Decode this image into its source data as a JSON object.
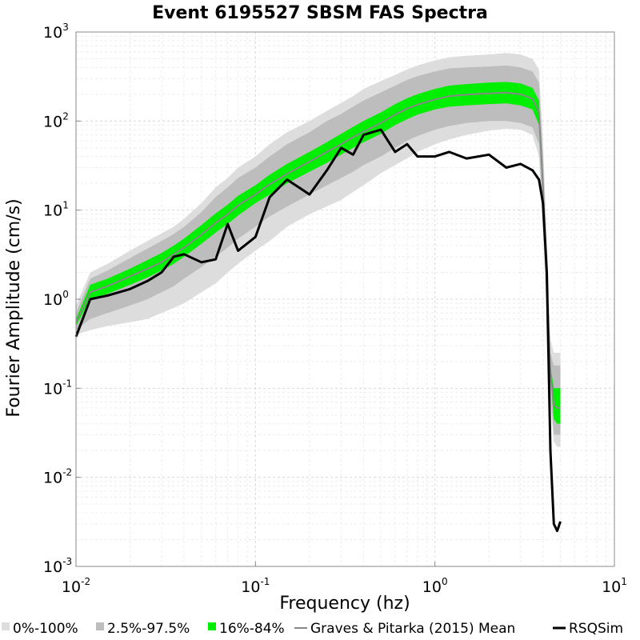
{
  "chart_data": {
    "type": "line",
    "title": "Event 6195527 SBSM FAS Spectra",
    "xlabel": "Frequency (hz)",
    "ylabel": "Fourier Amplitude (cm/s)",
    "x_scale": "log",
    "y_scale": "log",
    "xlim": [
      0.01,
      10
    ],
    "ylim": [
      0.001,
      1000
    ],
    "grid": true,
    "legend_position": "bottom",
    "x_ticks": [
      {
        "base": "10",
        "exp": "-2",
        "value": 0.01
      },
      {
        "base": "10",
        "exp": "-1",
        "value": 0.1
      },
      {
        "base": "10",
        "exp": "0",
        "value": 1
      },
      {
        "base": "10",
        "exp": "1",
        "value": 10
      }
    ],
    "y_ticks": [
      {
        "base": "10",
        "exp": "-3",
        "value": 0.001
      },
      {
        "base": "10",
        "exp": "-2",
        "value": 0.01
      },
      {
        "base": "10",
        "exp": "-1",
        "value": 0.1
      },
      {
        "base": "10",
        "exp": "0",
        "value": 1
      },
      {
        "base": "10",
        "exp": "1",
        "value": 10
      },
      {
        "base": "10",
        "exp": "2",
        "value": 100
      },
      {
        "base": "10",
        "exp": "3",
        "value": 1000
      }
    ],
    "x": [
      0.01,
      0.012,
      0.015,
      0.02,
      0.025,
      0.03,
      0.035,
      0.04,
      0.05,
      0.06,
      0.07,
      0.08,
      0.1,
      0.12,
      0.15,
      0.2,
      0.25,
      0.3,
      0.35,
      0.4,
      0.5,
      0.6,
      0.7,
      0.8,
      1.0,
      1.2,
      1.5,
      2.0,
      2.5,
      3.0,
      3.5,
      3.8,
      4.0,
      4.2,
      4.4,
      4.6,
      4.8,
      5.0
    ],
    "series": [
      {
        "name": "0%-100%",
        "kind": "band",
        "color": "#dddddd",
        "lower": [
          0.4,
          0.45,
          0.5,
          0.55,
          0.6,
          0.7,
          0.8,
          0.9,
          1.2,
          1.5,
          2.0,
          2.5,
          3.5,
          4.5,
          6.5,
          9.0,
          11.0,
          13.0,
          16.0,
          19.0,
          26.0,
          32.0,
          38.0,
          45.0,
          55.0,
          62.0,
          70.0,
          78.0,
          82.0,
          80.0,
          70.0,
          40.0,
          6.0,
          0.6,
          0.07,
          0.025,
          0.022,
          0.022
        ],
        "upper": [
          0.85,
          2.0,
          2.5,
          3.5,
          4.5,
          5.5,
          6.5,
          8.0,
          12.0,
          18.0,
          23.0,
          30.0,
          40.0,
          55.0,
          75.0,
          100.0,
          130.0,
          160.0,
          190.0,
          230.0,
          280.0,
          330.0,
          380.0,
          420.0,
          480.0,
          520.0,
          540.0,
          560.0,
          580.0,
          560.0,
          500.0,
          380.0,
          60.0,
          5.0,
          0.35,
          0.25,
          0.25,
          0.25
        ]
      },
      {
        "name": "2.5%-97.5%",
        "kind": "band",
        "color": "#bdbdbd",
        "lower": [
          0.45,
          0.6,
          0.7,
          0.85,
          1.0,
          1.2,
          1.4,
          1.7,
          2.3,
          3.0,
          3.8,
          4.8,
          6.5,
          8.5,
          11.0,
          15.0,
          19.0,
          23.0,
          27.0,
          32.0,
          40.0,
          50.0,
          60.0,
          68.0,
          80.0,
          88.0,
          95.0,
          100.0,
          100.0,
          95.0,
          85.0,
          55.0,
          8.0,
          0.8,
          0.09,
          0.03,
          0.03,
          0.03
        ],
        "upper": [
          0.7,
          1.7,
          2.1,
          2.9,
          3.7,
          4.5,
          5.4,
          6.5,
          9.5,
          14.0,
          18.0,
          23.0,
          30.0,
          40.0,
          55.0,
          75.0,
          100.0,
          120.0,
          145.0,
          170.0,
          210.0,
          250.0,
          290.0,
          320.0,
          360.0,
          390.0,
          400.0,
          410.0,
          420.0,
          400.0,
          360.0,
          270.0,
          40.0,
          3.0,
          0.25,
          0.18,
          0.18,
          0.18
        ]
      },
      {
        "name": "16%-84%",
        "kind": "band",
        "color": "#00ee00",
        "lower": [
          0.5,
          1.0,
          1.15,
          1.45,
          1.75,
          2.1,
          2.5,
          3.0,
          4.2,
          5.6,
          7.0,
          8.7,
          12.0,
          15.0,
          20.0,
          27.0,
          34.0,
          42.0,
          50.0,
          58.0,
          72.0,
          90.0,
          105.0,
          118.0,
          135.0,
          145.0,
          150.0,
          155.0,
          158.0,
          150.0,
          135.0,
          90.0,
          14.0,
          1.2,
          0.13,
          0.045,
          0.04,
          0.04
        ],
        "upper": [
          0.6,
          1.45,
          1.7,
          2.2,
          2.75,
          3.3,
          4.0,
          4.8,
          6.8,
          9.2,
          11.5,
          14.5,
          19.0,
          25.0,
          33.0,
          45.0,
          58.0,
          72.0,
          86.0,
          100.0,
          125.0,
          155.0,
          180.0,
          200.0,
          230.0,
          250.0,
          260.0,
          270.0,
          275.0,
          265.0,
          235.0,
          170.0,
          26.0,
          2.0,
          0.18,
          0.1,
          0.1,
          0.1
        ]
      },
      {
        "name": "Graves & Pitarka (2015) Mean",
        "kind": "line",
        "color": "#888888",
        "values": [
          0.55,
          1.2,
          1.4,
          1.8,
          2.2,
          2.6,
          3.2,
          3.8,
          5.3,
          7.2,
          9.0,
          11.3,
          15.0,
          19.5,
          25.5,
          35.0,
          45.0,
          55.0,
          66.0,
          76.0,
          95.0,
          118.0,
          138.0,
          153.0,
          175.0,
          190.0,
          198.0,
          205.0,
          208.0,
          200.0,
          178.0,
          125.0,
          19.0,
          1.5,
          0.15,
          0.065,
          0.06,
          0.06
        ]
      },
      {
        "name": "RSQSim",
        "kind": "line",
        "color": "#000000",
        "values": [
          0.38,
          1.0,
          1.1,
          1.3,
          1.6,
          2.0,
          3.0,
          3.2,
          2.6,
          2.8,
          7.0,
          3.5,
          5.0,
          14.0,
          22.0,
          15.0,
          28.0,
          50.0,
          42.0,
          70.0,
          80.0,
          45.0,
          55.0,
          40.0,
          40.0,
          45.0,
          38.0,
          42.0,
          30.0,
          33.0,
          28.0,
          22.0,
          12.0,
          2.0,
          0.02,
          0.003,
          0.0025,
          0.0032
        ]
      }
    ]
  }
}
